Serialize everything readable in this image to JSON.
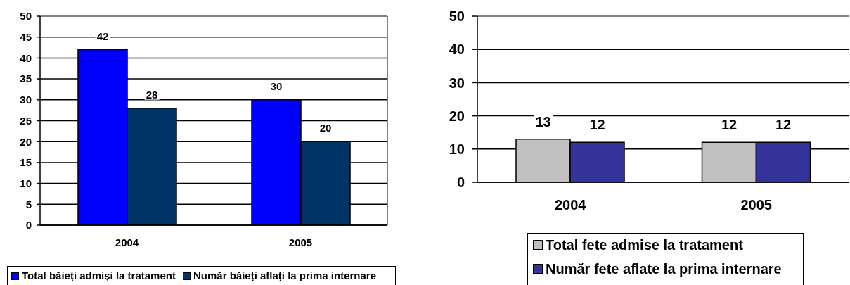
{
  "chart_data": [
    {
      "type": "bar",
      "categories": [
        "2004",
        "2005"
      ],
      "series": [
        {
          "name": "Total băieți admişi la tratament",
          "color": "#0000ff",
          "values": [
            42,
            30
          ]
        },
        {
          "name": "Număr băieți aflați la prima internare",
          "color": "#003366",
          "values": [
            28,
            20
          ]
        }
      ],
      "ylim": [
        0,
        50
      ],
      "yticks": [
        0,
        5,
        10,
        15,
        20,
        25,
        30,
        35,
        40,
        45,
        50
      ],
      "grid": "y",
      "legend": "bottom",
      "data_labels": true
    },
    {
      "type": "bar",
      "categories": [
        "2004",
        "2005"
      ],
      "series": [
        {
          "name": "Total fete admise la tratament",
          "color": "#c0c0c0",
          "values": [
            13,
            12
          ]
        },
        {
          "name": "Număr fete aflate la prima internare",
          "color": "#333399",
          "values": [
            12,
            12
          ]
        }
      ],
      "ylim": [
        0,
        50
      ],
      "yticks": [
        0,
        10,
        20,
        30,
        40,
        50
      ],
      "grid": "y",
      "legend": "bottom",
      "data_labels": true
    }
  ]
}
